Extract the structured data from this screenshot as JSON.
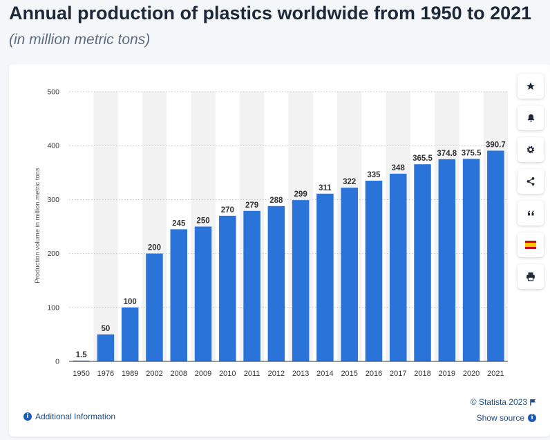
{
  "header": {
    "title": "Annual production of plastics worldwide from 1950 to 2021",
    "subtitle": "(in million metric tons)"
  },
  "chart_data": {
    "type": "bar",
    "title": "Annual production of plastics worldwide from 1950 to 2021",
    "subtitle": "(in million metric tons)",
    "xlabel": "",
    "ylabel": "Production volume in million metric tons",
    "ylim": [
      0,
      500
    ],
    "yticks": [
      "0",
      "100",
      "200",
      "300",
      "400",
      "500"
    ],
    "grid": true,
    "categories": [
      "1950",
      "1976",
      "1989",
      "2002",
      "2008",
      "2009",
      "2010",
      "2011",
      "2012",
      "2013",
      "2014",
      "2015",
      "2016",
      "2017",
      "2018",
      "2019",
      "2020",
      "2021"
    ],
    "values": [
      1.5,
      50,
      100,
      200,
      245,
      250,
      270,
      279,
      288,
      299,
      311,
      322,
      335,
      348,
      365.5,
      374.8,
      375.5,
      390.7
    ],
    "value_labels": [
      "1.5",
      "50",
      "100",
      "200",
      "245",
      "250",
      "270",
      "279",
      "288",
      "299",
      "311",
      "322",
      "335",
      "348",
      "365.5",
      "374.8",
      "375.5",
      "390.7"
    ],
    "bar_color": "#2a73d9"
  },
  "toolbar": {
    "icons": [
      "star-icon",
      "bell-icon",
      "gear-icon",
      "share-icon",
      "quote-icon",
      "spain-flag-icon",
      "print-icon"
    ]
  },
  "footer": {
    "copyright": "© Statista 2023",
    "show_source": "Show source",
    "additional_info": "Additional Information"
  },
  "colors": {
    "accent": "#1c4a8c",
    "bar": "#2a73d9",
    "stripe": "#f2f2f2"
  }
}
